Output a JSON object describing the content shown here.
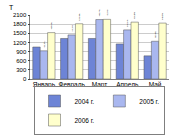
{
  "chart_data": {
    "type": "bar",
    "ylabel": "Т",
    "categories": [
      "Январь",
      "Февраль",
      "Март",
      "Апрель",
      "Май"
    ],
    "series": [
      {
        "name": "2004 г.",
        "color": "#6d84d6",
        "values": [
          1050,
          1330,
          1330,
          1150,
          760
        ]
      },
      {
        "name": "2005 г.",
        "color": "#a9b7ef",
        "values": [
          925,
          1446,
          1951,
          1611,
          1238
        ],
        "annotations": [
          "-11,9%",
          "+8,7%",
          "+46,7%",
          "+40,1%",
          "+62,9%"
        ]
      },
      {
        "name": "2006 г.",
        "color": "#ffffcc",
        "values": [
          1522,
          1813,
          1957,
          1866,
          1835
        ],
        "annotations": [
          "+64,5%",
          "+25,4%",
          "+0,3%",
          "+15,8%",
          "+48,2%"
        ]
      }
    ],
    "ylim": [
      0,
      2100
    ],
    "yticks": [
      0,
      300,
      600,
      900,
      1200,
      1500,
      1800,
      2100
    ],
    "grid": true,
    "legend": "bottom"
  }
}
